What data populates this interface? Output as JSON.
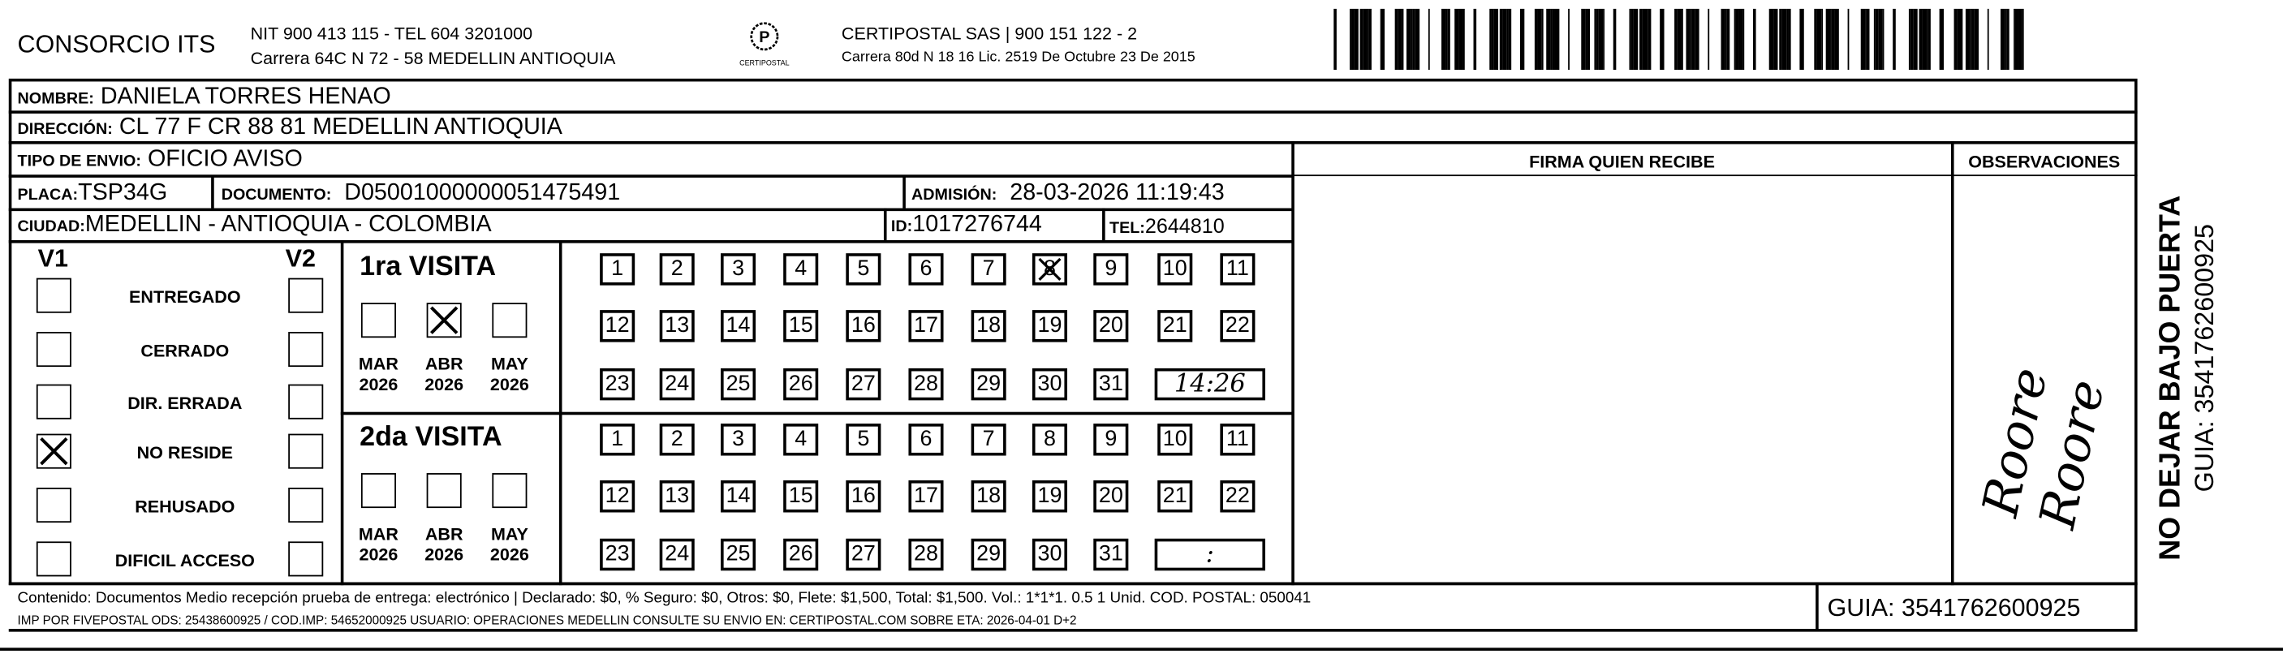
{
  "header": {
    "company": "CONSORCIO ITS",
    "nit_line": "NIT 900 413 115 - TEL 604 3201000",
    "address_line": "Carrera 64C N 72 - 58 MEDELLIN ANTIOQUIA",
    "logo_text": "CERTIPOSTAL",
    "carrier": "CERTIPOSTAL SAS | 900 151 122 - 2",
    "carrier_license": "Carrera 80d N 18 16  Lic. 2519 De Octubre 23 De 2015"
  },
  "recipient": {
    "nombre_label": "NOMBRE:",
    "nombre": "DANIELA TORRES HENAO",
    "direccion_label": "DIRECCIÓN:",
    "direccion": "CL 77 F CR 88 81  MEDELLIN ANTIOQUIA",
    "tipo_label": "TIPO DE ENVIO:",
    "tipo": "OFICIO AVISO",
    "placa_label": "PLACA:",
    "placa": "TSP34G",
    "documento_label": "DOCUMENTO:",
    "documento": "D05001000000051475491",
    "admision_label": "ADMISIÓN:",
    "admision": "28-03-2026 11:19:43",
    "ciudad_label": "CIUDAD:",
    "ciudad": "MEDELLIN - ANTIOQUIA - COLOMBIA",
    "id_label": "ID:",
    "id": "1017276744",
    "tel_label": "TEL:",
    "tel": "2644810"
  },
  "columns": {
    "firma": "FIRMA QUIEN RECIBE",
    "observaciones": "OBSERVACIONES",
    "observaciones_handwriting": "Roore  Roore"
  },
  "status": {
    "v1": "V1",
    "v2": "V2",
    "items": [
      {
        "label": "ENTREGADO",
        "v1": false,
        "v2": false
      },
      {
        "label": "CERRADO",
        "v1": false,
        "v2": false
      },
      {
        "label": "DIR. ERRADA",
        "v1": false,
        "v2": false
      },
      {
        "label": "NO RESIDE",
        "v1": true,
        "v2": false
      },
      {
        "label": "REHUSADO",
        "v1": false,
        "v2": false
      },
      {
        "label": "DIFICIL ACCESO",
        "v1": false,
        "v2": false
      }
    ]
  },
  "visits": [
    {
      "title": "1ra VISITA",
      "months": [
        {
          "m": "MAR",
          "y": "2026",
          "checked": false
        },
        {
          "m": "ABR",
          "y": "2026",
          "checked": true
        },
        {
          "m": "MAY",
          "y": "2026",
          "checked": false
        }
      ],
      "checked_day": 8,
      "time": "14:26"
    },
    {
      "title": "2da VISITA",
      "months": [
        {
          "m": "MAR",
          "y": "2026",
          "checked": false
        },
        {
          "m": "ABR",
          "y": "2026",
          "checked": false
        },
        {
          "m": "MAY",
          "y": "2026",
          "checked": false
        }
      ],
      "checked_day": null,
      "time": ":"
    }
  ],
  "footer": {
    "line1": "Contenido: Documentos Medio recepción prueba de entrega: electrónico | Declarado: $0, % Seguro: $0, Otros: $0, Flete: $1,500, Total: $1,500. Vol.: 1*1*1. 0.5  1 Unid. COD. POSTAL: 050041",
    "line2": "IMP POR FIVEPOSTAL ODS: 25438600925 / COD.IMP: 54652000925 USUARIO: OPERACIONES MEDELLIN CONSULTE SU ENVIO EN: CERTIPOSTAL.COM SOBRE ETA: 2026-04-01 D+2",
    "guia": "GUIA: 3541762600925"
  },
  "side": {
    "warning": "NO DEJAR BAJO PUERTA",
    "guia": "GUIA: 3541762600925"
  }
}
